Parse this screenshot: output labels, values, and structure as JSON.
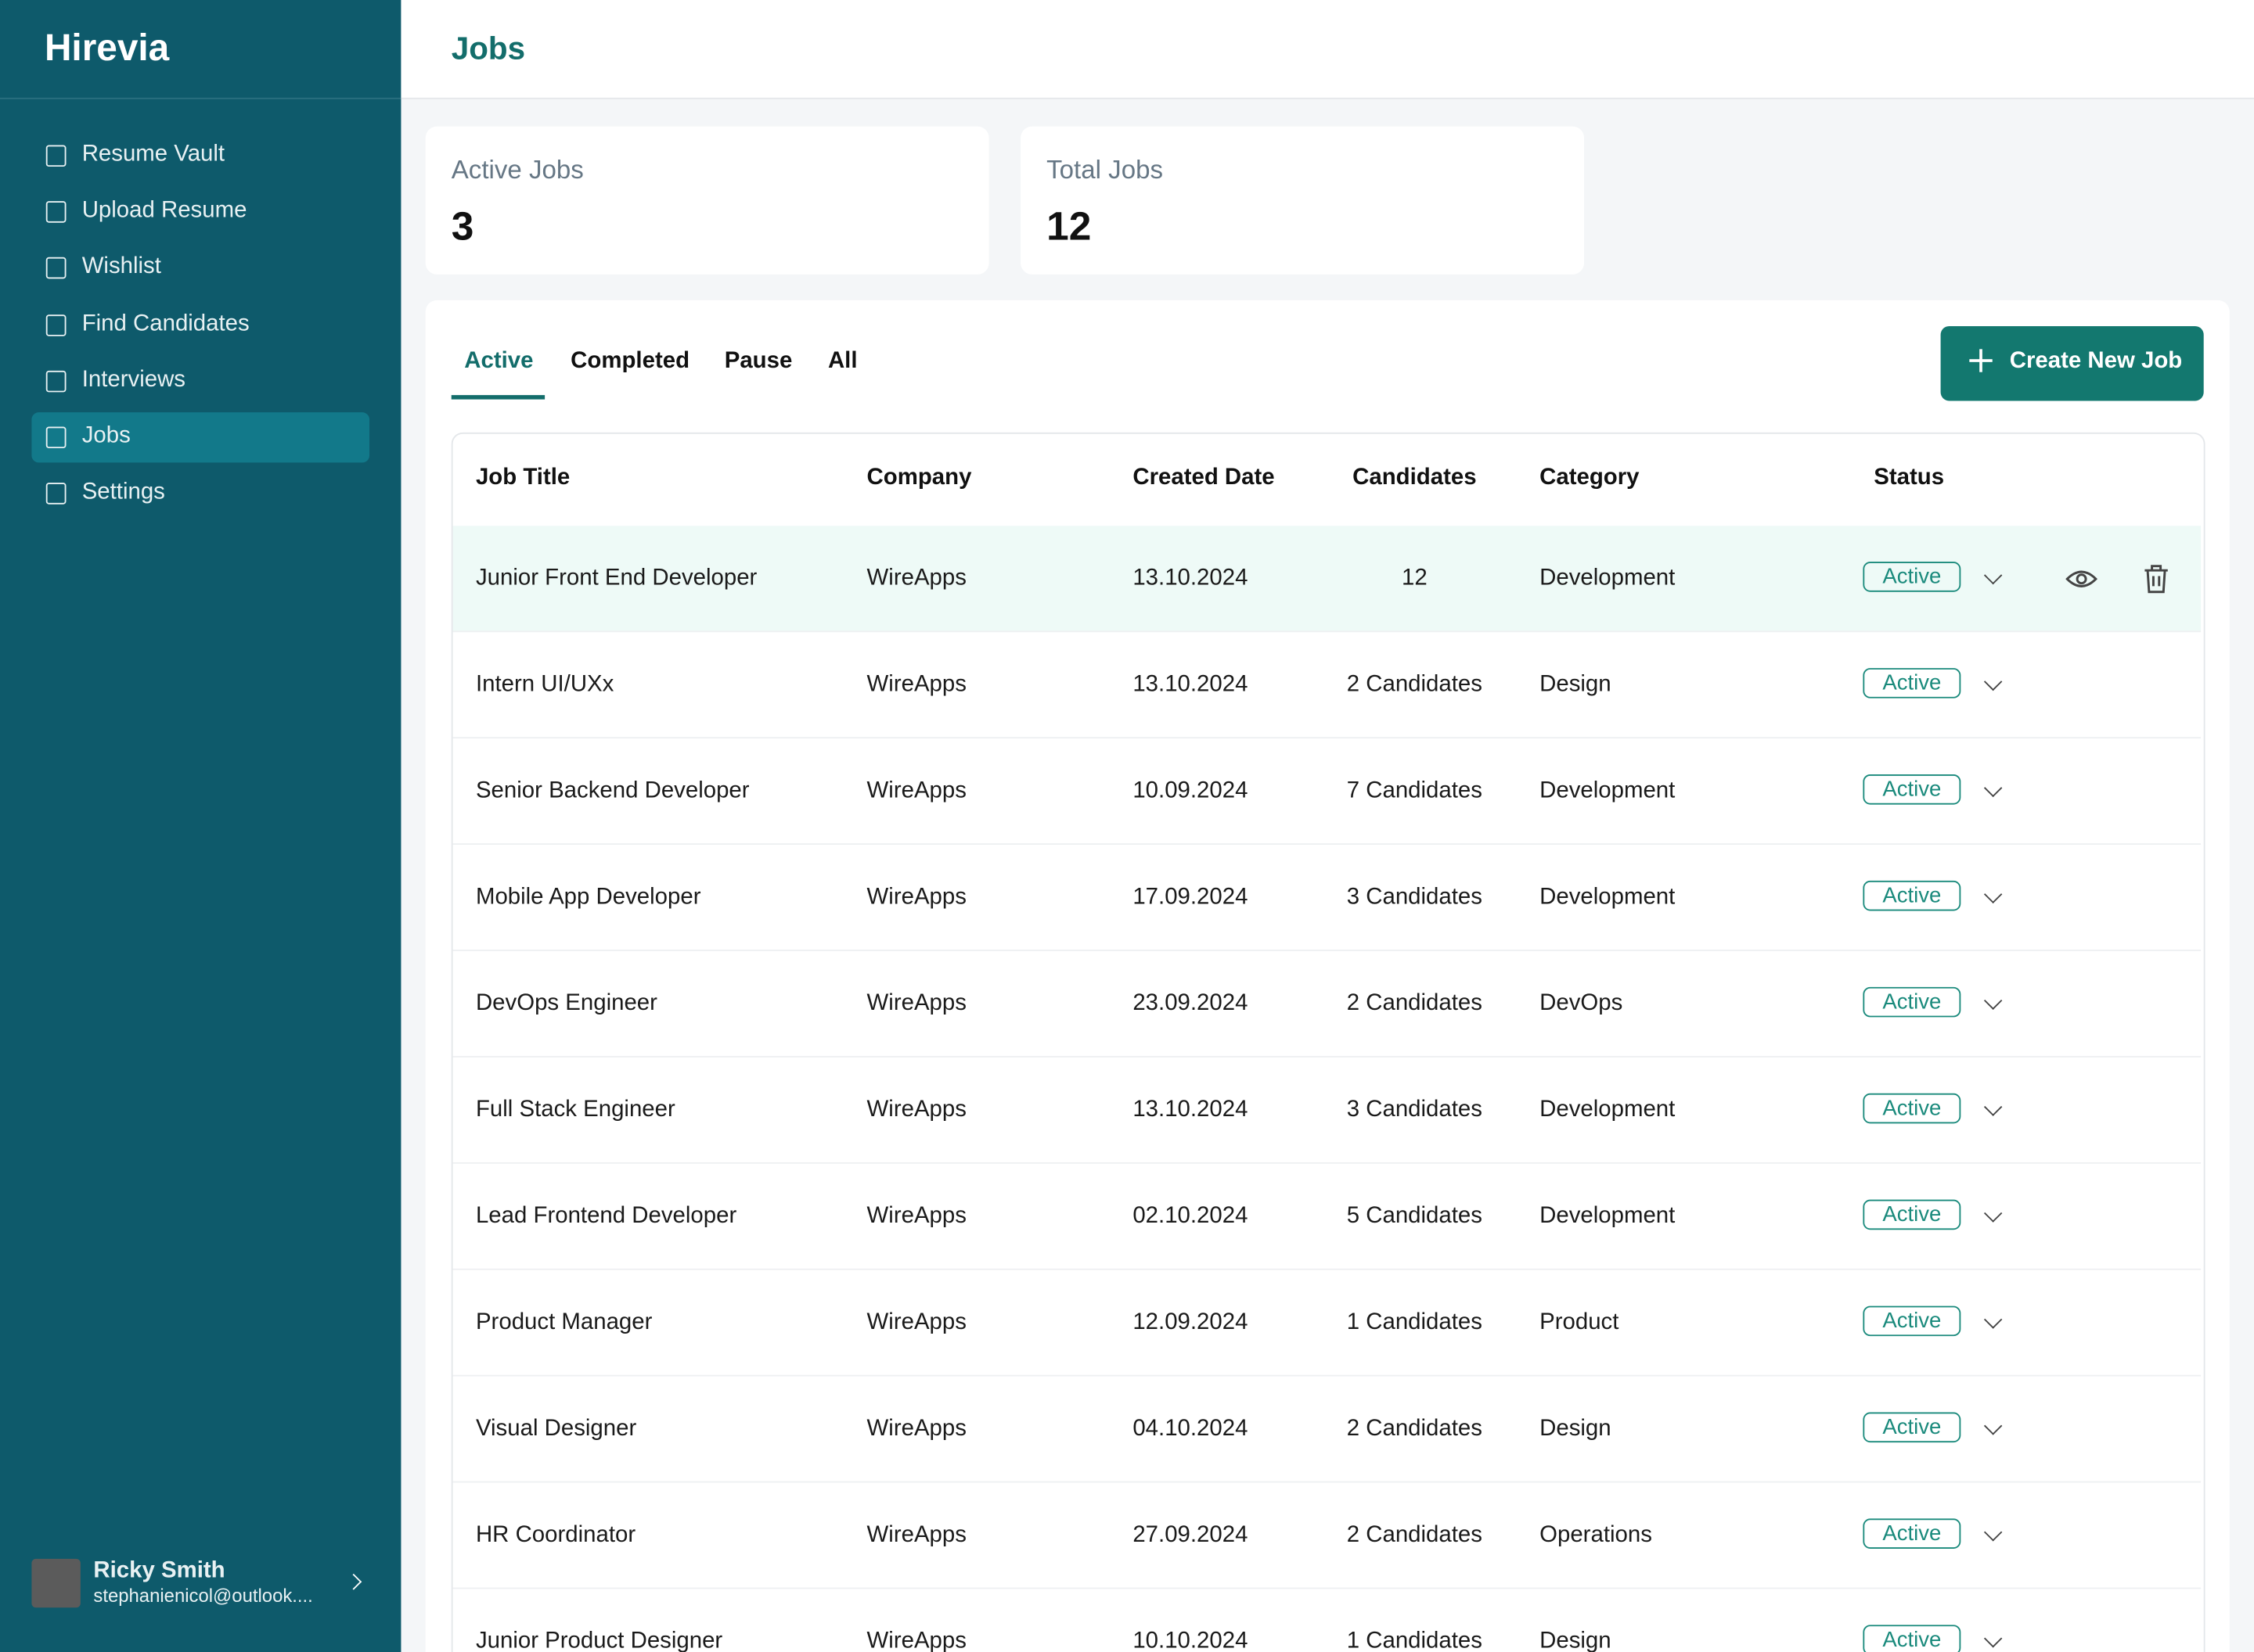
{
  "sidebar": {
    "brand": "Hirevia",
    "nav": [
      "Resume Vault",
      "Upload Resume",
      "Wishlist",
      "Find Candidates",
      "Interviews",
      "Jobs",
      "Settings"
    ],
    "user": {
      "name": "Ricky Smith",
      "email": "stephanienicol@outlook...."
    }
  },
  "header": {
    "title": "Jobs"
  },
  "stats": [
    {
      "label": "Active Jobs",
      "value": 3
    },
    {
      "label": "Total Jobs",
      "value": 12
    }
  ],
  "tabs": [
    "Active",
    "Completed",
    "Pause",
    "All"
  ],
  "create_button": "Create New Job",
  "table": {
    "columns": [
      "Job Title",
      "Company",
      "Created Date",
      "Candidates",
      "Category",
      "Status"
    ],
    "rows": [
      [
        "Junior Front End Developer",
        "WireApps",
        "13.10.2024",
        "12",
        "Development",
        "Active"
      ],
      [
        "Intern UI/UXx",
        "WireApps",
        "13.10.2024",
        "2 Candidates",
        "Design",
        "Active"
      ],
      [
        "Senior Backend Developer",
        "WireApps",
        "10.09.2024",
        "7 Candidates",
        "Development",
        "Active"
      ],
      [
        "Mobile App Developer",
        "WireApps",
        "17.09.2024",
        "3 Candidates",
        "Development",
        "Active"
      ],
      [
        "DevOps Engineer",
        "WireApps",
        "23.09.2024",
        "2 Candidates",
        "DevOps",
        "Active"
      ],
      [
        "Full Stack Engineer",
        "WireApps",
        "13.10.2024",
        "3 Candidates",
        "Development",
        "Active"
      ],
      [
        "Lead Frontend Developer",
        "WireApps",
        "02.10.2024",
        "5 Candidates",
        "Development",
        "Active"
      ],
      [
        "Product Manager",
        "WireApps",
        "12.09.2024",
        "1 Candidates",
        "Product",
        "Active"
      ],
      [
        "Visual Designer",
        "WireApps",
        "04.10.2024",
        "2 Candidates",
        "Design",
        "Active"
      ],
      [
        "HR Coordinator",
        "WireApps",
        "27.09.2024",
        "2 Candidates",
        "Operations",
        "Active"
      ],
      [
        "Junior Product Designer",
        "WireApps",
        "10.10.2024",
        "1 Candidates",
        "Design",
        "Active"
      ]
    ]
  }
}
